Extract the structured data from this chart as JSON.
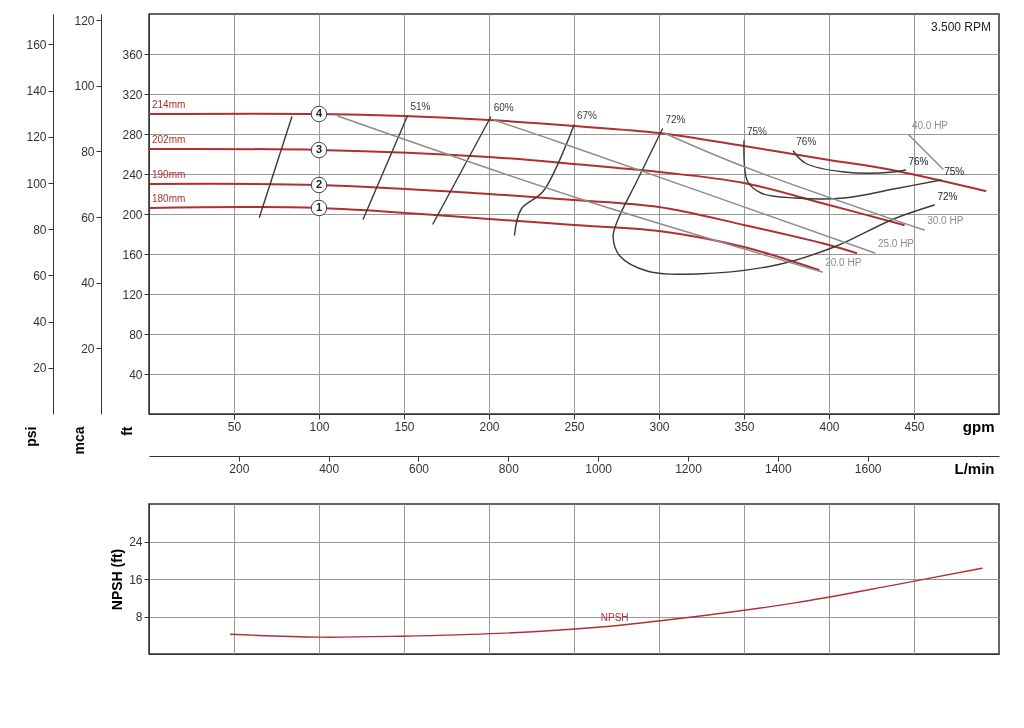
{
  "chart_data": [
    {
      "type": "line",
      "xlabel": "gpm",
      "ylabel": "ft",
      "y2label": "mca",
      "y3label": "psi",
      "x2label": "L/min",
      "xlim": [
        0,
        500
      ],
      "xticks": [
        50,
        100,
        150,
        200,
        250,
        300,
        350,
        400,
        450
      ],
      "x2lim": [
        0,
        1892.5
      ],
      "x2ticks": [
        200,
        400,
        600,
        800,
        1000,
        1200,
        1400,
        1600
      ],
      "ylim": [
        0,
        400
      ],
      "yticks": [
        40,
        80,
        120,
        160,
        200,
        240,
        280,
        320,
        360
      ],
      "y2lim": [
        0,
        121.9
      ],
      "y2ticks": [
        20,
        40,
        60,
        80,
        100,
        120
      ],
      "y3lim": [
        0,
        173.2
      ],
      "y3ticks": [
        20,
        40,
        60,
        80,
        100,
        120,
        140,
        160
      ],
      "grid": true,
      "series": [
        {
          "name": "214mm",
          "color": "#b03030",
          "x": [
            0,
            100,
            150,
            200,
            250,
            300,
            350,
            400,
            434,
            492
          ],
          "values": [
            300,
            300,
            298,
            294,
            288,
            281,
            268,
            254,
            245,
            223
          ]
        },
        {
          "name": "202mm",
          "color": "#b03030",
          "x": [
            0,
            100,
            200,
            250,
            300,
            350,
            400,
            444
          ],
          "values": [
            265,
            264,
            257,
            250,
            242,
            231,
            209,
            189
          ]
        },
        {
          "name": "190mm",
          "color": "#b03030",
          "x": [
            0,
            100,
            200,
            250,
            300,
            350,
            400,
            416
          ],
          "values": [
            230,
            229,
            220,
            214,
            207,
            189,
            169,
            161
          ]
        },
        {
          "name": "180mm",
          "color": "#b03030",
          "x": [
            0,
            100,
            200,
            250,
            300,
            350,
            394
          ],
          "values": [
            206,
            206,
            195,
            189,
            183,
            167,
            144
          ]
        },
        {
          "color": "#3a3a3a",
          "x": [
            84,
            65
          ],
          "values": [
            297,
            197
          ]
        },
        {
          "name": "51%",
          "color": "#3a3a3a",
          "x": [
            152,
            126
          ],
          "values": [
            298,
            195
          ]
        },
        {
          "name": "60%",
          "color": "#3a3a3a",
          "x": [
            201,
            167
          ],
          "values": [
            297,
            190
          ]
        },
        {
          "name": "67%",
          "color": "#3a3a3a",
          "x": [
            250,
            232,
            219,
            215
          ],
          "values": [
            289,
            223,
            205,
            179
          ]
        },
        {
          "name": "72%",
          "color": "#3a3a3a",
          "x": [
            302,
            287,
            276,
            273,
            277,
            293,
            322,
            369,
            403,
            438,
            462
          ],
          "values": [
            285,
            233,
            195,
            177,
            158,
            143,
            140,
            149,
            167,
            195,
            209
          ]
        },
        {
          "name": "75%",
          "color": "#3a3a3a",
          "x": [
            350,
            352,
            360,
            380,
            409,
            438,
            466
          ],
          "values": [
            273,
            233,
            221,
            216,
            216,
            225,
            234
          ]
        },
        {
          "name": "76%",
          "color": "#3a3a3a",
          "x": [
            379,
            386,
            409,
            438,
            445
          ],
          "values": [
            263,
            251,
            242,
            242,
            244
          ]
        },
        {
          "name": "20.0 HP",
          "color": "#8c8c8c",
          "x": [
            396,
            252,
            111
          ],
          "values": [
            142,
            216,
            298
          ]
        },
        {
          "name": "25.0 HP",
          "color": "#8c8c8c",
          "x": [
            427,
            241,
            203
          ],
          "values": [
            161,
            272,
            294
          ]
        },
        {
          "name": "30.0 HP",
          "color": "#8c8c8c",
          "x": [
            456,
            349,
            303
          ],
          "values": [
            184,
            248,
            281
          ]
        },
        {
          "name": "40.0 HP",
          "color": "#8c8c8c",
          "x": [
            447,
            467
          ],
          "values": [
            279,
            245
          ]
        }
      ],
      "annotations": [
        "3.500 RPM",
        {
          "text": "1",
          "x": 100,
          "y": 206
        },
        {
          "text": "2",
          "x": 100,
          "y": 229
        },
        {
          "text": "3",
          "x": 100,
          "y": 264
        },
        {
          "text": "4",
          "x": 100,
          "y": 300
        },
        {
          "text": "72%",
          "x": 462,
          "y": 209
        },
        {
          "text": "75%",
          "x": 466,
          "y": 234
        },
        {
          "text": "76%",
          "x": 445,
          "y": 244
        }
      ]
    },
    {
      "type": "line",
      "ylabel": "NPSH (ft)",
      "xlim": [
        0,
        500
      ],
      "xticks": [
        50,
        100,
        150,
        200,
        250,
        300,
        350,
        400,
        450
      ],
      "ylim": [
        0,
        32
      ],
      "yticks": [
        8,
        16,
        24
      ],
      "tick_labels": "y",
      "grid": true,
      "series": [
        {
          "name": "NPSH",
          "color": "#b03030",
          "x": [
            48,
            100,
            148,
            206,
            264,
            322,
            380,
            438,
            490
          ],
          "values": [
            4.2,
            3.6,
            3.8,
            4.4,
            5.7,
            8.0,
            10.9,
            14.7,
            18.3
          ]
        }
      ]
    }
  ]
}
